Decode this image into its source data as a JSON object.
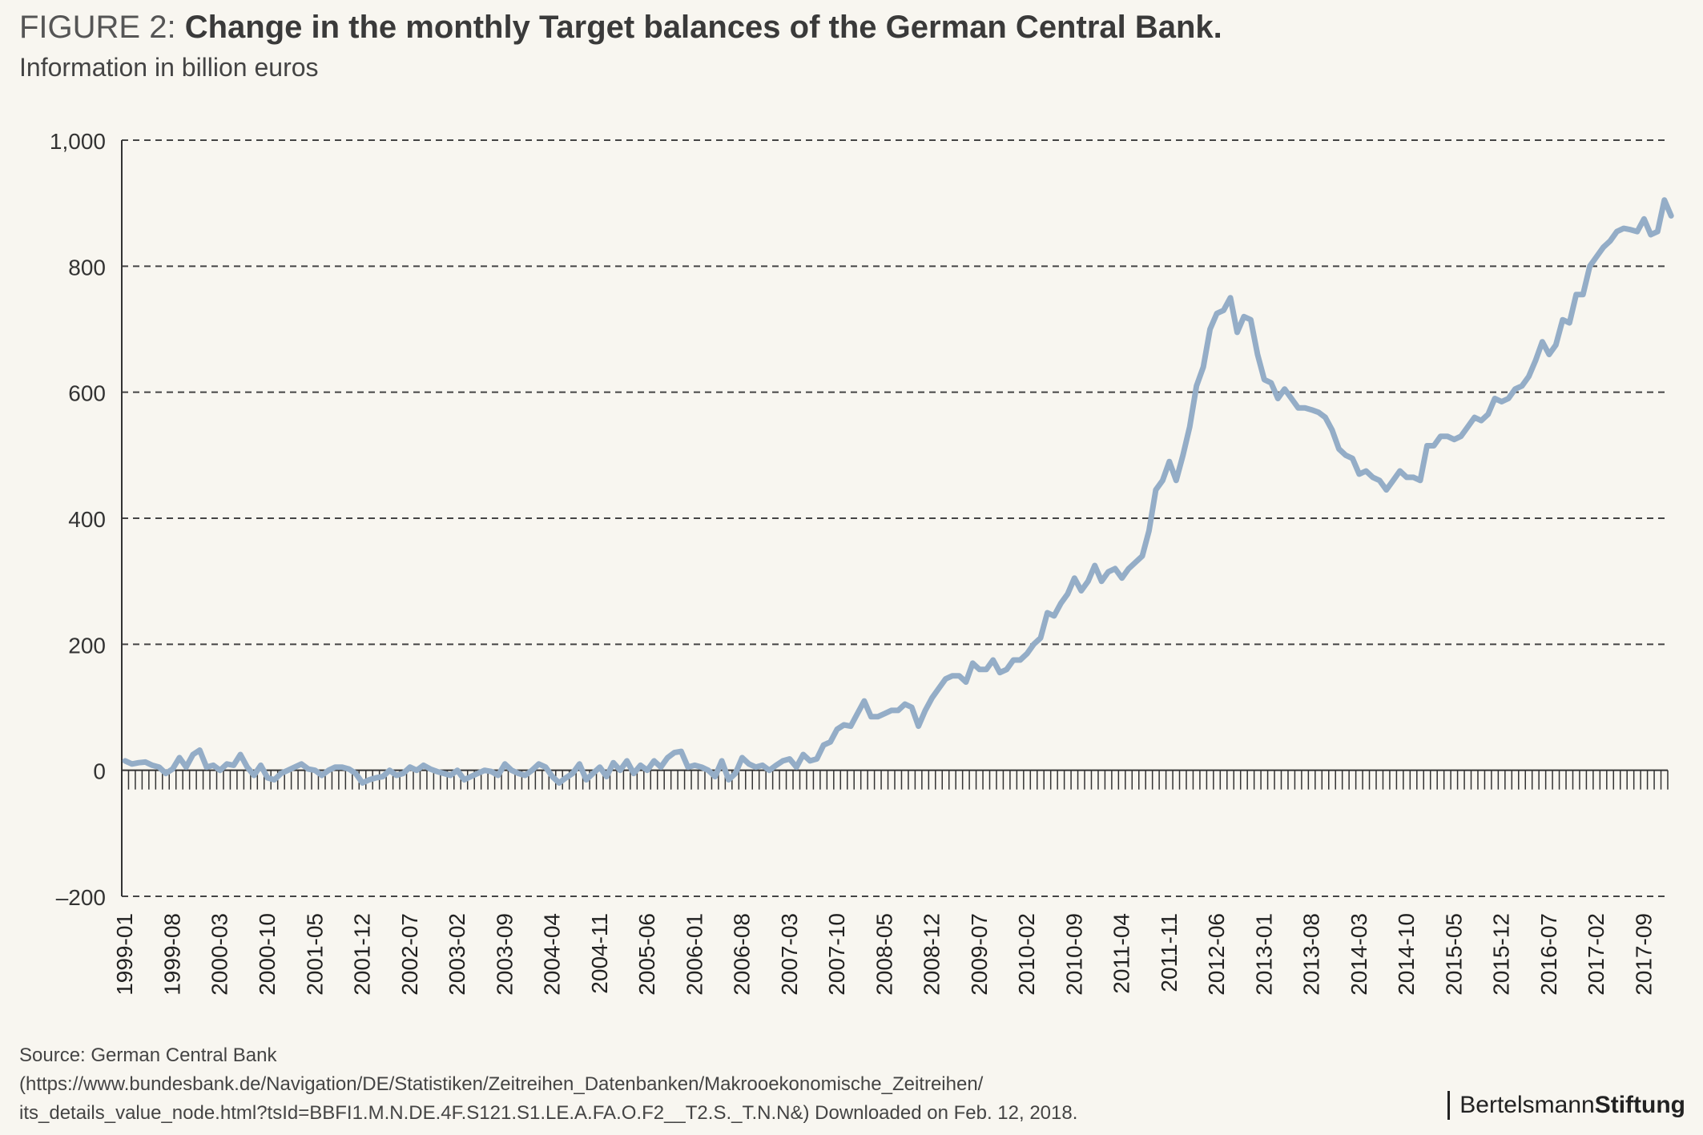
{
  "header": {
    "figure_label": "FIGURE 2:",
    "title": "Change in the monthly Target balances of the German Central Bank.",
    "subtitle": "Information in billion euros"
  },
  "source": {
    "line1": "Source: German Central Bank",
    "line2": "(https://www.bundesbank.de/Navigation/DE/Statistiken/Zeitreihen_Datenbanken/Makrooekonomische_Zeitreihen/",
    "line3": "its_details_value_node.html?tsId=BBFI1.M.N.DE.4F.S121.S1.LE.A.FA.O.F2__T2.S._T.N.N&) Downloaded on Feb. 12, 2018."
  },
  "brand": {
    "part1": "Bertelsmann",
    "part2": "Stiftung"
  },
  "colors": {
    "line": "#94adc7",
    "axis": "#333333",
    "grid": "#444444",
    "background": "#f8f6f0"
  },
  "chart_data": {
    "type": "line",
    "title": "Change in the monthly Target balances of the German Central Bank.",
    "ylabel": "Information in billion euros",
    "ylim": [
      -200,
      1000
    ],
    "yticks": [
      -200,
      0,
      200,
      400,
      600,
      800,
      1000
    ],
    "ytick_labels": [
      "–200",
      "0",
      "200",
      "400",
      "600",
      "800",
      "1,000"
    ],
    "grid": "horizontal dashed",
    "x_start": "1999-01",
    "x_end": "2017-12",
    "xtick_labels": [
      "1999-01",
      "1999-08",
      "2000-03",
      "2000-10",
      "2001-05",
      "2001-12",
      "2002-07",
      "2003-02",
      "2003-09",
      "2004-04",
      "2004-11",
      "2005-06",
      "2006-01",
      "2006-08",
      "2007-03",
      "2007-10",
      "2008-05",
      "2008-12",
      "2009-07",
      "2010-02",
      "2010-09",
      "2011-04",
      "2011-11",
      "2012-06",
      "2013-01",
      "2013-08",
      "2014-03",
      "2014-10",
      "2015-05",
      "2015-12",
      "2016-07",
      "2017-02",
      "2017-09"
    ],
    "series": [
      {
        "values": [
          15,
          10,
          12,
          13,
          8,
          5,
          -5,
          2,
          20,
          5,
          25,
          32,
          5,
          8,
          0,
          10,
          8,
          25,
          5,
          -8,
          8,
          -12,
          -15,
          -5,
          0,
          5,
          10,
          2,
          0,
          -8,
          0,
          5,
          5,
          2,
          -5,
          -20,
          -15,
          -12,
          -10,
          0,
          -8,
          -5,
          5,
          0,
          8,
          2,
          -2,
          -5,
          -8,
          0,
          -15,
          -10,
          -5,
          0,
          -2,
          -8,
          10,
          0,
          -5,
          -8,
          0,
          10,
          5,
          -10,
          -20,
          -12,
          -5,
          10,
          -15,
          -5,
          5,
          -10,
          12,
          0,
          15,
          -5,
          8,
          0,
          15,
          5,
          20,
          28,
          30,
          5,
          8,
          5,
          0,
          -10,
          15,
          -15,
          -5,
          20,
          10,
          5,
          8,
          0,
          8,
          15,
          18,
          5,
          25,
          15,
          18,
          40,
          45,
          65,
          72,
          70,
          90,
          110,
          85,
          85,
          90,
          95,
          95,
          105,
          100,
          70,
          95,
          115,
          130,
          145,
          150,
          150,
          140,
          170,
          160,
          160,
          175,
          155,
          160,
          175,
          175,
          185,
          200,
          210,
          250,
          245,
          265,
          280,
          305,
          285,
          300,
          325,
          300,
          315,
          320,
          305,
          320,
          330,
          340,
          380,
          445,
          460,
          490,
          460,
          500,
          545,
          610,
          640,
          700,
          725,
          730,
          750,
          695,
          720,
          715,
          660,
          620,
          615,
          590,
          605,
          590,
          575,
          575,
          572,
          568,
          560,
          540,
          510,
          500,
          495,
          470,
          475,
          465,
          460,
          445,
          460,
          475,
          465,
          465,
          460,
          515,
          515,
          530,
          530,
          525,
          530,
          545,
          560,
          555,
          565,
          590,
          585,
          590,
          605,
          610,
          625,
          650,
          680,
          660,
          675,
          715,
          710,
          755,
          755,
          800,
          815,
          830,
          840,
          855,
          860,
          858,
          855,
          875,
          850,
          855,
          905,
          880
        ]
      }
    ]
  }
}
